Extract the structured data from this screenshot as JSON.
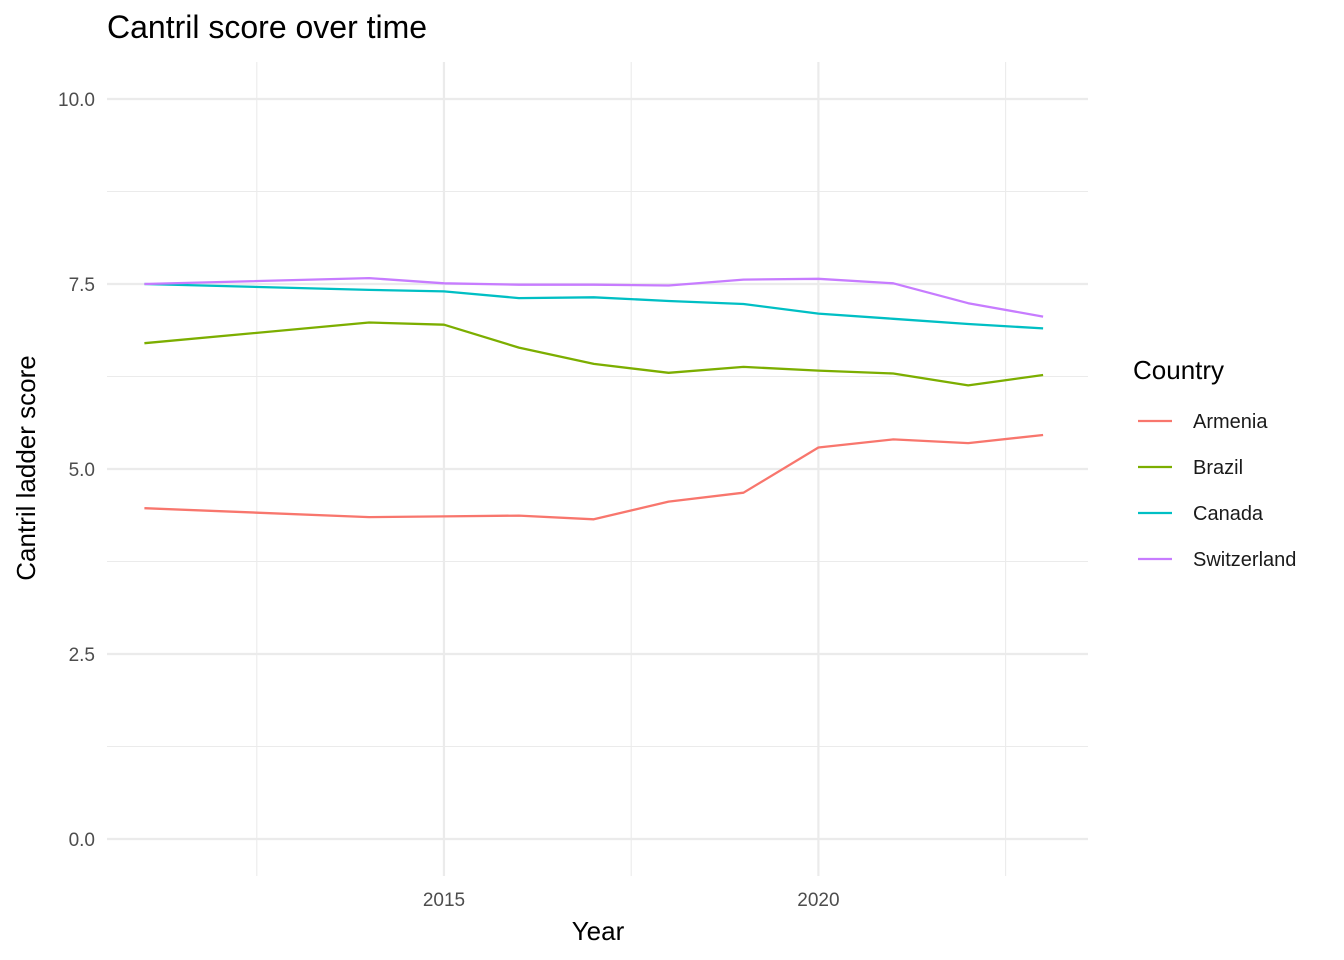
{
  "chart_data": {
    "type": "line",
    "title": "Cantril score over time",
    "xlabel": "Year",
    "ylabel": "Cantril ladder score",
    "x": [
      2011,
      2014,
      2015,
      2016,
      2017,
      2018,
      2019,
      2020,
      2021,
      2022,
      2023
    ],
    "xlim": [
      2010.5,
      2023.6
    ],
    "ylim": [
      -0.5,
      10.5
    ],
    "x_ticks": [
      2015,
      2020
    ],
    "x_tick_labels": [
      "2015",
      "2020"
    ],
    "x_minor_ticks": [
      2012.5,
      2017.5,
      2022.5
    ],
    "y_ticks": [
      0,
      2.5,
      5,
      7.5,
      10
    ],
    "y_tick_labels": [
      "0.0",
      "2.5",
      "5.0",
      "7.5",
      "10.0"
    ],
    "y_minor_ticks": [
      1.25,
      3.75,
      6.25,
      8.75
    ],
    "grid": true,
    "legend": {
      "title": "Country",
      "position": "right"
    },
    "series": [
      {
        "name": "Armenia",
        "color": "#F8766D",
        "values": [
          4.47,
          4.35,
          4.36,
          4.37,
          4.32,
          4.56,
          4.68,
          5.29,
          5.4,
          5.35,
          5.46
        ]
      },
      {
        "name": "Brazil",
        "color": "#7CAE00",
        "values": [
          6.7,
          6.98,
          6.95,
          6.64,
          6.42,
          6.3,
          6.38,
          6.33,
          6.29,
          6.13,
          6.27
        ]
      },
      {
        "name": "Canada",
        "color": "#00BFC4",
        "values": [
          7.5,
          7.42,
          7.4,
          7.31,
          7.32,
          7.27,
          7.23,
          7.1,
          7.03,
          6.96,
          6.9
        ]
      },
      {
        "name": "Switzerland",
        "color": "#C77CFF",
        "values": [
          7.5,
          7.58,
          7.51,
          7.49,
          7.49,
          7.48,
          7.56,
          7.57,
          7.51,
          7.24,
          7.06
        ]
      }
    ]
  }
}
